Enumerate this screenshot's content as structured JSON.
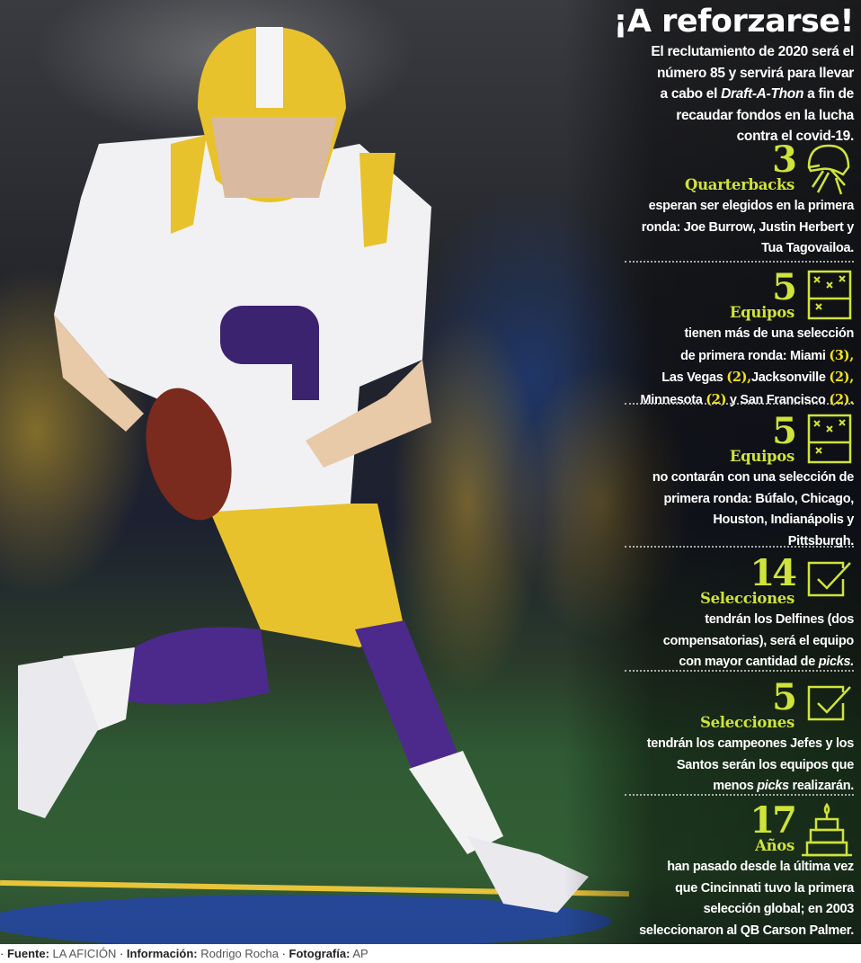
{
  "title": "¡A reforzarse!",
  "intro_lines": [
    [
      {
        "t": "El reclutamiento de 2020 será el"
      }
    ],
    [
      {
        "t": "número 85 y servirá para llevar"
      }
    ],
    [
      {
        "t": "a cabo el "
      },
      {
        "t": "Draft-A-Thon",
        "i": true
      },
      {
        "t": " a fin de"
      }
    ],
    [
      {
        "t": "recaudar fondos en la lucha"
      }
    ],
    [
      {
        "t": "contra el covid-19."
      }
    ]
  ],
  "stats": [
    {
      "number": "3",
      "label": "Quarterbacks",
      "icon": "helmet-icon",
      "lines": [
        [
          {
            "t": "esperan ser elegidos en la primera"
          }
        ],
        [
          {
            "t": "ronda: Joe Burrow, Justin Herbert y"
          }
        ],
        [
          {
            "t": "Tua Tagovailoa."
          }
        ]
      ]
    },
    {
      "number": "5",
      "label": "Equipos",
      "icon": "playbook-icon",
      "lines": [
        [
          {
            "t": "tienen más de una selección"
          }
        ],
        [
          {
            "t": "de primera ronda:  Miami "
          },
          {
            "t": "(3),",
            "h": true
          }
        ],
        [
          {
            "t": "Las Vegas "
          },
          {
            "t": "(2),",
            "h": true
          },
          {
            "t": "Jacksonville "
          },
          {
            "t": "(2),",
            "h": true
          }
        ],
        [
          {
            "t": "Minnesota "
          },
          {
            "t": "(2)",
            "h": true
          },
          {
            "t": "  y San Francisco "
          },
          {
            "t": "(2).",
            "h": true
          }
        ]
      ]
    },
    {
      "number": "5",
      "label": "Equipos",
      "icon": "playbook-icon",
      "lines": [
        [
          {
            "t": "no contarán con una selección de"
          }
        ],
        [
          {
            "t": "primera ronda: Búfalo, Chicago,"
          }
        ],
        [
          {
            "t": "Houston, Indianápolis y"
          }
        ],
        [
          {
            "t": "Pittsburgh."
          }
        ]
      ]
    },
    {
      "number": "14",
      "label": "Selecciones",
      "icon": "checkbox-icon",
      "lines": [
        [
          {
            "t": "tendrán los Delfines (dos"
          }
        ],
        [
          {
            "t": "compensatorias), será el equipo"
          }
        ],
        [
          {
            "t": "con mayor cantidad de "
          },
          {
            "t": "picks.",
            "i": true
          }
        ]
      ]
    },
    {
      "number": "5",
      "label": "Selecciones",
      "icon": "checkbox-icon",
      "lines": [
        [
          {
            "t": "tendrán los campeones Jefes y los"
          }
        ],
        [
          {
            "t": "Santos serán los equipos que"
          }
        ],
        [
          {
            "t": "menos "
          },
          {
            "t": "picks",
            "i": true
          },
          {
            "t": " realizarán."
          }
        ]
      ]
    },
    {
      "number": "17",
      "label": "Años",
      "icon": "cake-icon",
      "lines": [
        [
          {
            "t": "han pasado desde la última vez"
          }
        ],
        [
          {
            "t": "que Cincinnati tuvo la primera"
          }
        ],
        [
          {
            "t": "selección global; en 2003"
          }
        ],
        [
          {
            "t": "seleccionaron al QB Carson Palmer."
          }
        ]
      ]
    }
  ],
  "credits": {
    "source_label": "Fuente:",
    "source": "LA AFICIÓN",
    "info_label": "Información:",
    "info": "Rodrigo Rocha",
    "photo_label": "Fotografía:",
    "photo": "AP"
  },
  "colors": {
    "accent": "#cfe33a",
    "highlight": "#f3e31a"
  }
}
